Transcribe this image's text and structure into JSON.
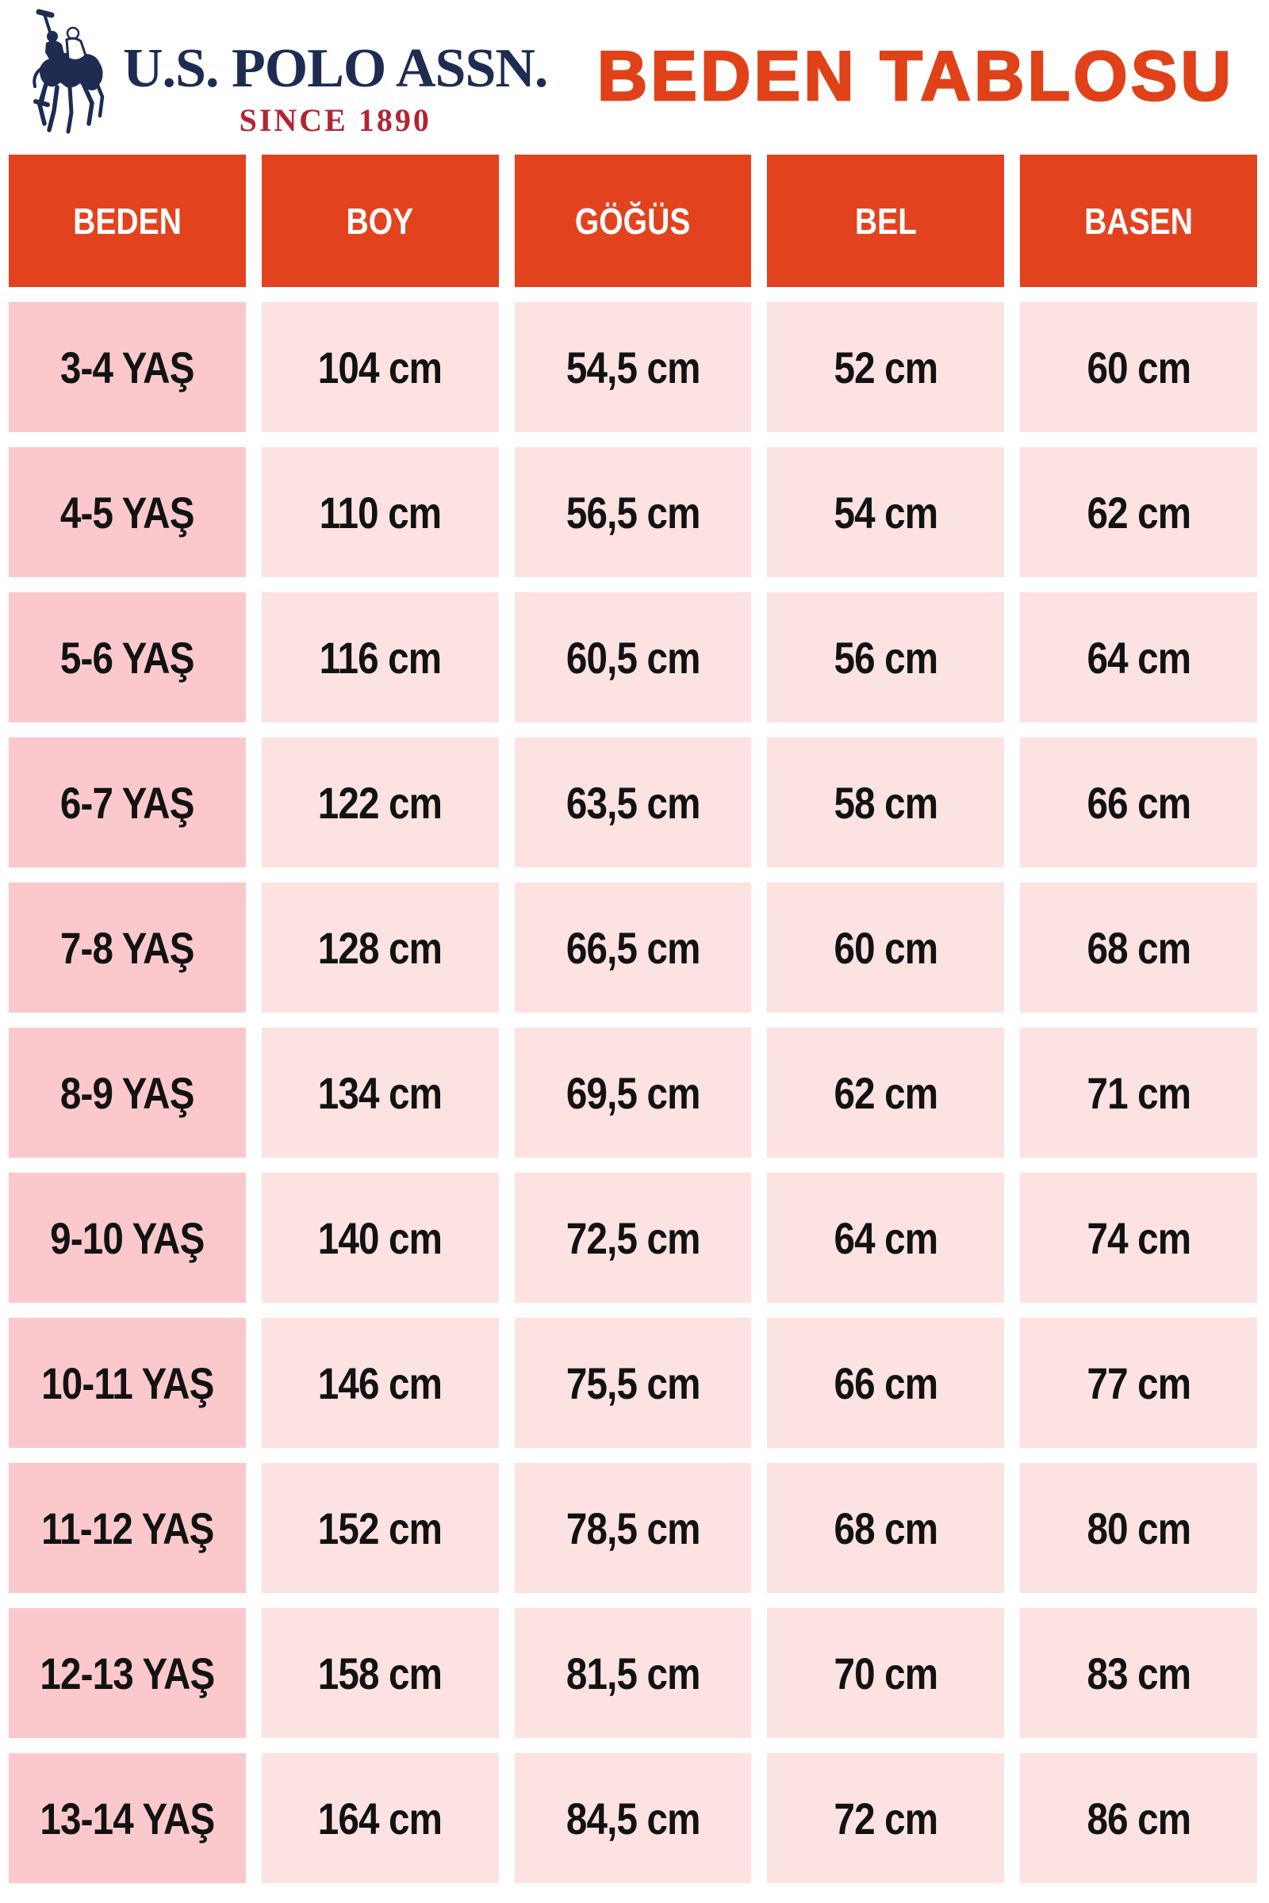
{
  "brand": {
    "name": "U.S. POLO ASSN.",
    "tagline": "SINCE 1890",
    "logo_icon": "polo-players-icon",
    "navy_color": "#1e2c52",
    "crimson_color": "#b22433"
  },
  "title": {
    "text": "BEDEN TABLOSU",
    "color": "#e04119"
  },
  "table": {
    "headers": [
      "BEDEN",
      "BOY",
      "GÖĞÜS",
      "BEL",
      "BASEN"
    ],
    "rows": [
      [
        "3-4 YAŞ",
        "104 cm",
        "54,5 cm",
        "52 cm",
        "60 cm"
      ],
      [
        "4-5 YAŞ",
        "110 cm",
        "56,5 cm",
        "54 cm",
        "62 cm"
      ],
      [
        "5-6 YAŞ",
        "116 cm",
        "60,5 cm",
        "56 cm",
        "64 cm"
      ],
      [
        "6-7 YAŞ",
        "122 cm",
        "63,5 cm",
        "58 cm",
        "66 cm"
      ],
      [
        "7-8 YAŞ",
        "128 cm",
        "66,5 cm",
        "60 cm",
        "68 cm"
      ],
      [
        "8-9 YAŞ",
        "134 cm",
        "69,5 cm",
        "62 cm",
        "71 cm"
      ],
      [
        "9-10 YAŞ",
        "140 cm",
        "72,5 cm",
        "64 cm",
        "74 cm"
      ],
      [
        "10-11 YAŞ",
        "146 cm",
        "75,5 cm",
        "66 cm",
        "77 cm"
      ],
      [
        "11-12 YAŞ",
        "152 cm",
        "78,5 cm",
        "68 cm",
        "80 cm"
      ],
      [
        "12-13 YAŞ",
        "158 cm",
        "81,5 cm",
        "70 cm",
        "83 cm"
      ],
      [
        "13-14 YAŞ",
        "164 cm",
        "84,5 cm",
        "72 cm",
        "86 cm"
      ]
    ],
    "colors": {
      "header_bg": "#e3421e",
      "header_text": "#ffffff",
      "size_col_bg": "#fbc9cc",
      "value_col_bg": "#fce2e1",
      "cell_text": "#121212"
    }
  }
}
